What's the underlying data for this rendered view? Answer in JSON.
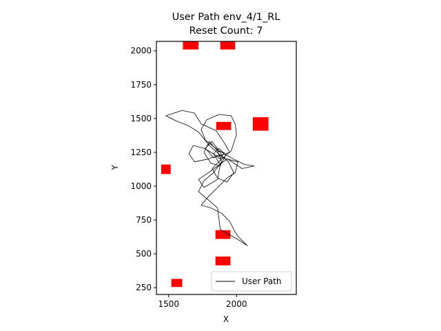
{
  "chart_data": {
    "type": "line",
    "title": "User Path env_4/1_RL",
    "subtitle": "Reset Count: 7",
    "xlabel": "X",
    "ylabel": "Y",
    "xlim": [
      1410,
      2440
    ],
    "ylim": [
      200,
      2070
    ],
    "xticks": [
      1500,
      2000
    ],
    "yticks": [
      250,
      500,
      750,
      1000,
      1250,
      1500,
      1750,
      2000
    ],
    "legend": {
      "position": "lower-right",
      "entries": [
        "User Path"
      ]
    },
    "grid": false,
    "series": [
      {
        "name": "User Path",
        "color": "#000000",
        "values": [
          [
            1900,
            1200
          ],
          [
            1880,
            1250
          ],
          [
            1820,
            1330
          ],
          [
            1770,
            1280
          ],
          [
            1830,
            1210
          ],
          [
            1950,
            1250
          ],
          [
            1910,
            1320
          ],
          [
            1850,
            1410
          ],
          [
            1740,
            1460
          ],
          [
            1690,
            1540
          ],
          [
            1600,
            1560
          ],
          [
            1480,
            1520
          ],
          [
            1560,
            1480
          ],
          [
            1640,
            1450
          ],
          [
            1720,
            1400
          ],
          [
            1800,
            1300
          ],
          [
            1880,
            1230
          ],
          [
            1940,
            1180
          ],
          [
            1980,
            1100
          ],
          [
            1930,
            1030
          ],
          [
            1860,
            1060
          ],
          [
            1820,
            1130
          ],
          [
            1890,
            1200
          ],
          [
            1960,
            1260
          ],
          [
            2000,
            1380
          ],
          [
            1990,
            1460
          ],
          [
            1960,
            1520
          ],
          [
            1870,
            1530
          ],
          [
            1780,
            1490
          ],
          [
            1740,
            1420
          ],
          [
            1770,
            1340
          ],
          [
            1860,
            1270
          ],
          [
            1960,
            1210
          ],
          [
            2060,
            1160
          ],
          [
            2130,
            1150
          ],
          [
            2040,
            1130
          ],
          [
            1950,
            1190
          ],
          [
            1870,
            1230
          ],
          [
            1790,
            1200
          ],
          [
            1690,
            1180
          ],
          [
            1650,
            1240
          ],
          [
            1680,
            1300
          ],
          [
            1760,
            1280
          ],
          [
            1830,
            1240
          ],
          [
            1880,
            1160
          ],
          [
            1860,
            1050
          ],
          [
            1760,
            990
          ],
          [
            1720,
            1050
          ],
          [
            1780,
            1090
          ],
          [
            1850,
            1140
          ],
          [
            1930,
            1200
          ],
          [
            2010,
            1180
          ],
          [
            1990,
            1100
          ],
          [
            1930,
            1060
          ],
          [
            1870,
            1000
          ],
          [
            1790,
            920
          ],
          [
            1740,
            860
          ],
          [
            1810,
            840
          ],
          [
            1890,
            800
          ],
          [
            1950,
            740
          ],
          [
            1990,
            660
          ],
          [
            2010,
            630
          ],
          [
            2080,
            560
          ],
          [
            2020,
            600
          ],
          [
            1950,
            640
          ],
          [
            1880,
            680
          ],
          [
            1870,
            760
          ],
          [
            1860,
            840
          ],
          [
            1790,
            900
          ],
          [
            1720,
            960
          ],
          [
            1760,
            1040
          ],
          [
            1830,
            1100
          ],
          [
            1890,
            1180
          ],
          [
            1860,
            1260
          ],
          [
            1800,
            1330
          ],
          [
            1760,
            1250
          ],
          [
            1810,
            1170
          ],
          [
            1880,
            1150
          ],
          [
            1920,
            1230
          ],
          [
            1870,
            1280
          ],
          [
            1830,
            1240
          ],
          [
            1880,
            1200
          ],
          [
            1910,
            1250
          ],
          [
            1860,
            1260
          ]
        ]
      }
    ],
    "markers": {
      "color": "#ff0000",
      "rects": [
        {
          "x": [
            1605,
            1720
          ],
          "y": [
            2010,
            2085
          ]
        },
        {
          "x": [
            1880,
            1990
          ],
          "y": [
            2010,
            2085
          ]
        },
        {
          "x": [
            2120,
            2235
          ],
          "y": [
            1410,
            1510
          ]
        },
        {
          "x": [
            1850,
            1960
          ],
          "y": [
            1415,
            1475
          ]
        },
        {
          "x": [
            1445,
            1515
          ],
          "y": [
            1090,
            1160
          ]
        },
        {
          "x": [
            1845,
            1955
          ],
          "y": [
            610,
            675
          ]
        },
        {
          "x": [
            1845,
            1955
          ],
          "y": [
            415,
            480
          ]
        },
        {
          "x": [
            1520,
            1600
          ],
          "y": [
            255,
            315
          ]
        }
      ]
    }
  }
}
